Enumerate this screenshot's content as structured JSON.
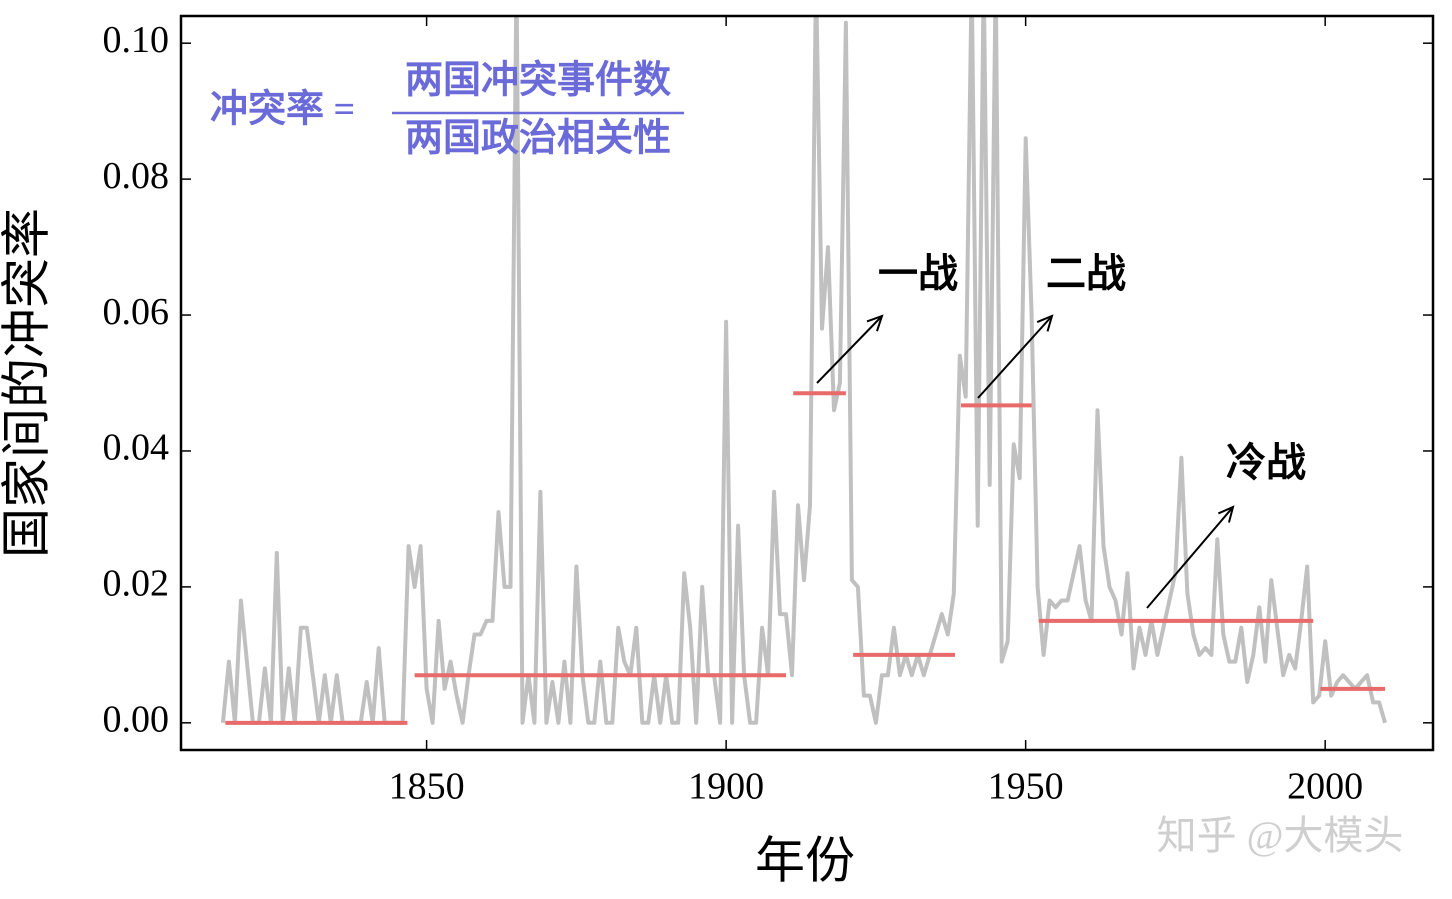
{
  "chart_data": {
    "type": "line",
    "xlabel": "年份",
    "ylabel": "国家间的冲突率",
    "formula": {
      "lhs": "冲突率 =",
      "numerator": "两国冲突事件数",
      "denominator": "两国政治相关性",
      "color": "#6a6ad8"
    },
    "watermark": "知乎 @大模头",
    "annotations": [
      {
        "text": "一战"
      },
      {
        "text": "二战"
      },
      {
        "text": "冷战"
      }
    ],
    "xlim": [
      1809,
      2018
    ],
    "ylim": [
      -0.004,
      0.104
    ],
    "xticks": [
      1850,
      1900,
      1950,
      2000
    ],
    "yticks": [
      {
        "value": 0,
        "label": "0.00"
      },
      {
        "value": 0.02,
        "label": "0.02"
      },
      {
        "value": 0.04,
        "label": "0.04"
      },
      {
        "value": 0.06,
        "label": "0.06"
      },
      {
        "value": 0.08,
        "label": "0.08"
      },
      {
        "value": 0.1,
        "label": "0.10"
      }
    ],
    "x": [
      1816,
      1817,
      1818,
      1819,
      1820,
      1821,
      1822,
      1823,
      1824,
      1825,
      1826,
      1827,
      1828,
      1829,
      1830,
      1831,
      1832,
      1833,
      1834,
      1835,
      1836,
      1837,
      1838,
      1839,
      1840,
      1841,
      1842,
      1843,
      1844,
      1845,
      1846,
      1847,
      1848,
      1849,
      1850,
      1851,
      1852,
      1853,
      1854,
      1855,
      1856,
      1857,
      1858,
      1859,
      1860,
      1861,
      1862,
      1863,
      1864,
      1865,
      1866,
      1867,
      1868,
      1869,
      1870,
      1871,
      1872,
      1873,
      1874,
      1875,
      1876,
      1877,
      1878,
      1879,
      1880,
      1881,
      1882,
      1883,
      1884,
      1885,
      1886,
      1887,
      1888,
      1889,
      1890,
      1891,
      1892,
      1893,
      1894,
      1895,
      1896,
      1897,
      1898,
      1899,
      1900,
      1901,
      1902,
      1903,
      1904,
      1905,
      1906,
      1907,
      1908,
      1909,
      1910,
      1911,
      1912,
      1913,
      1914,
      1915,
      1916,
      1917,
      1918,
      1919,
      1920,
      1921,
      1922,
      1923,
      1924,
      1925,
      1926,
      1927,
      1928,
      1929,
      1930,
      1931,
      1932,
      1933,
      1934,
      1935,
      1936,
      1937,
      1938,
      1939,
      1940,
      1941,
      1942,
      1943,
      1944,
      1945,
      1946,
      1947,
      1948,
      1949,
      1950,
      1951,
      1952,
      1953,
      1954,
      1955,
      1956,
      1957,
      1958,
      1959,
      1960,
      1961,
      1962,
      1963,
      1964,
      1965,
      1966,
      1967,
      1968,
      1969,
      1970,
      1971,
      1972,
      1973,
      1974,
      1975,
      1976,
      1977,
      1978,
      1979,
      1980,
      1981,
      1982,
      1983,
      1984,
      1985,
      1986,
      1987,
      1988,
      1989,
      1990,
      1991,
      1992,
      1993,
      1994,
      1995,
      1996,
      1997,
      1998,
      1999,
      2000,
      2001,
      2002,
      2003,
      2004,
      2005,
      2006,
      2007,
      2008,
      2009,
      2010
    ],
    "series": [
      {
        "color": "#c0c0c0",
        "values": [
          0,
          0.009,
          0,
          0.018,
          0.009,
          0,
          0,
          0.008,
          0,
          0.025,
          0,
          0.008,
          0,
          0.014,
          0.014,
          0.007,
          0,
          0.007,
          0,
          0.007,
          0,
          0,
          0,
          0,
          0.006,
          0,
          0.011,
          0,
          0,
          0,
          0,
          0.026,
          0.02,
          0.026,
          0.005,
          0,
          0.015,
          0.005,
          0.009,
          0.004,
          0,
          0.007,
          0.013,
          0.013,
          0.015,
          0.015,
          0.031,
          0.02,
          0.02,
          0.11,
          0,
          0.007,
          0,
          0.034,
          0,
          0.006,
          0,
          0.009,
          0,
          0.023,
          0.007,
          0,
          0,
          0.009,
          0,
          0,
          0.014,
          0.009,
          0.007,
          0.014,
          0,
          0,
          0.007,
          0,
          0.007,
          0,
          0,
          0.022,
          0.014,
          0,
          0.02,
          0.007,
          0.007,
          0,
          0.059,
          0,
          0.029,
          0.007,
          0,
          0,
          0.014,
          0.007,
          0.034,
          0.016,
          0.016,
          0.007,
          0.032,
          0.021,
          0.032,
          0.11,
          0.058,
          0.07,
          0.046,
          0.05,
          0.103,
          0.021,
          0.02,
          0.004,
          0.004,
          0,
          0.007,
          0.007,
          0.014,
          0.007,
          0.01,
          0.007,
          0.01,
          0.007,
          0.01,
          0.013,
          0.016,
          0.013,
          0.019,
          0.054,
          0.048,
          0.11,
          0.029,
          0.11,
          0.035,
          0.11,
          0.009,
          0.012,
          0.041,
          0.036,
          0.086,
          0.06,
          0.02,
          0.01,
          0.018,
          0.017,
          0.018,
          0.018,
          0.022,
          0.026,
          0.018,
          0.015,
          0.046,
          0.026,
          0.02,
          0.018,
          0.013,
          0.022,
          0.008,
          0.014,
          0.01,
          0.015,
          0.01,
          0.014,
          0.018,
          0.022,
          0.039,
          0.019,
          0.013,
          0.01,
          0.011,
          0.01,
          0.027,
          0.013,
          0.009,
          0.009,
          0.014,
          0.006,
          0.01,
          0.017,
          0.009,
          0.021,
          0.014,
          0.007,
          0.01,
          0.008,
          0.015,
          0.023,
          0.003,
          0.004,
          0.012,
          0.004,
          0.006,
          0.007,
          0.006,
          0.005,
          0.006,
          0.007,
          0.003,
          0.003,
          0
        ]
      }
    ],
    "periods_color": "#e86a6a",
    "periods": [
      {
        "start": 1816.4,
        "end": 1846.8,
        "value": 0
      },
      {
        "start": 1848,
        "end": 1910,
        "value": 0.007
      },
      {
        "start": 1911.2,
        "end": 1920,
        "value": 0.0485
      },
      {
        "start": 1921.2,
        "end": 1938.2,
        "value": 0.01
      },
      {
        "start": 1939.2,
        "end": 1951,
        "value": 0.0467
      },
      {
        "start": 1952.2,
        "end": 1998,
        "value": 0.015
      },
      {
        "start": 1999.2,
        "end": 2010,
        "value": 0.005
      }
    ]
  }
}
